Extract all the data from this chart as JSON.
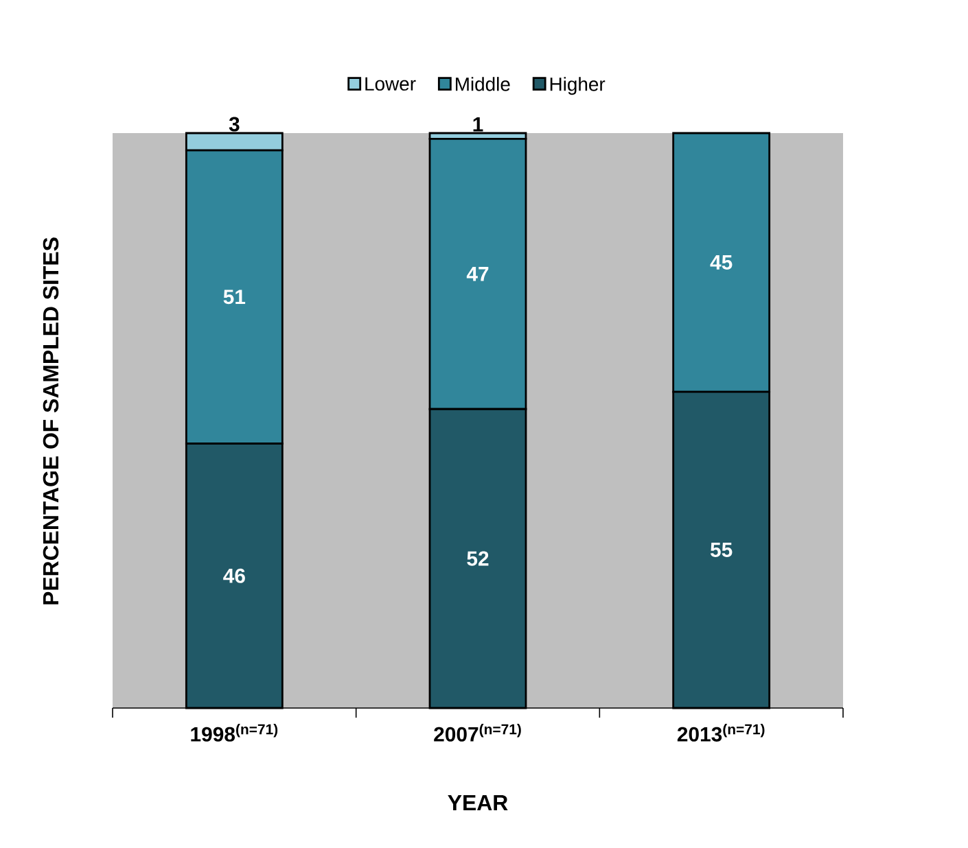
{
  "chart_data": {
    "type": "bar",
    "stacked": true,
    "categories": [
      "1998$^{(n=71)}$",
      "2007$^{(n=71)}$",
      "2013$^{(n=71)}$"
    ],
    "xlabel": "YEAR",
    "ylabel": "PERCENTAGE OF SAMPLED SITES",
    "series": [
      {
        "name": "Higher",
        "color": "#215967",
        "values": [
          46,
          52,
          55
        ],
        "value_labels": [
          "46",
          "52",
          "55"
        ]
      },
      {
        "name": "Middle",
        "color": "#31869b",
        "values": [
          51,
          47,
          45
        ],
        "value_labels": [
          "51",
          "47",
          "45"
        ]
      },
      {
        "name": "Lower",
        "color": "#93cddd",
        "values": [
          3,
          1,
          0
        ],
        "value_labels": [
          "3",
          "1",
          null
        ]
      }
    ],
    "legend": "top"
  }
}
